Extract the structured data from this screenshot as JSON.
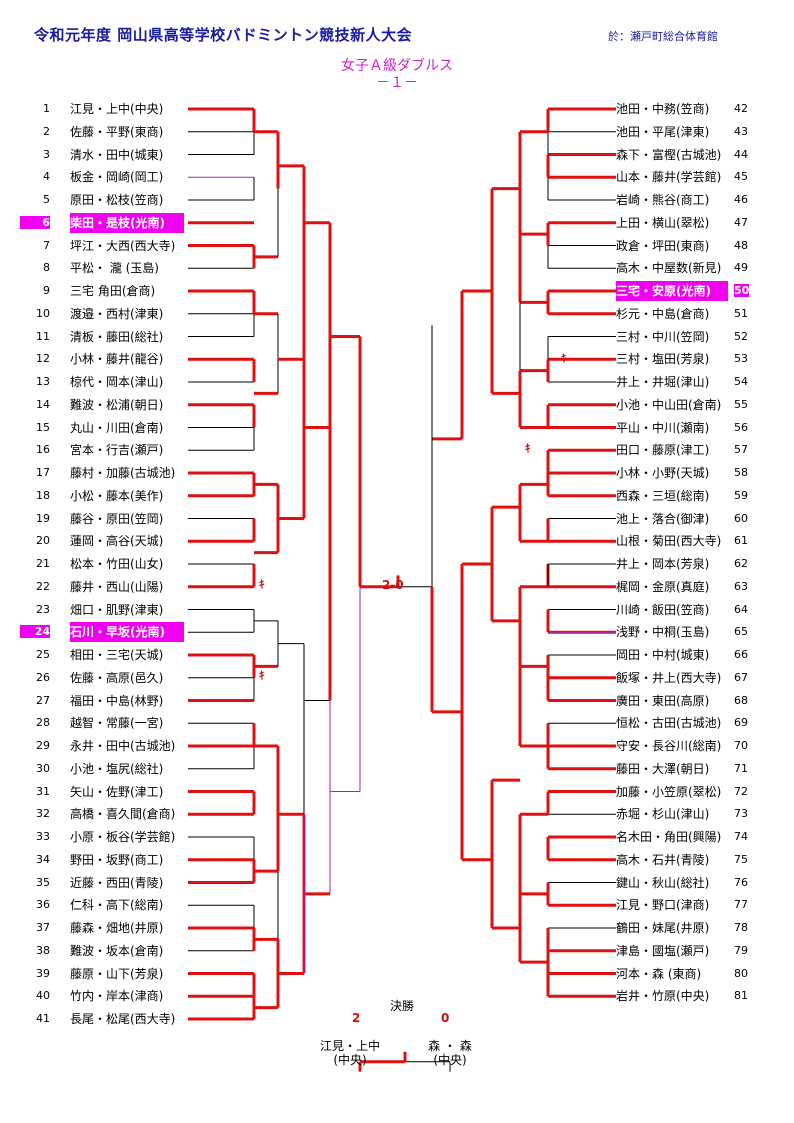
{
  "header": {
    "title": "令和元年度 岡山県高等学校バドミントン競技新人大会",
    "venue": "於：瀬戸町総合体育館",
    "event": "女子Ａ級ダブルス",
    "sheet": "－１－"
  },
  "left_entries": [
    {
      "no": "1",
      "pair": "江見・上中(中央)"
    },
    {
      "no": "2",
      "pair": "佐藤・平野(東商)"
    },
    {
      "no": "3",
      "pair": "清水・田中(城東)"
    },
    {
      "no": "4",
      "pair": "板金・岡崎(岡工)"
    },
    {
      "no": "5",
      "pair": "原田・松枝(笠商)"
    },
    {
      "no": "6",
      "pair": "柴田・是枝(光南)",
      "highlight": true
    },
    {
      "no": "7",
      "pair": "坪江・大西(西大寺)"
    },
    {
      "no": "8",
      "pair": "平松・ 瀧 (玉島)"
    },
    {
      "no": "9",
      "pair": "三宅 角田(倉商)"
    },
    {
      "no": "10",
      "pair": "渡邉・西村(津東)"
    },
    {
      "no": "11",
      "pair": "清板・藤田(総社)"
    },
    {
      "no": "12",
      "pair": "小林・藤井(龍谷)"
    },
    {
      "no": "13",
      "pair": "椋代・岡本(津山)"
    },
    {
      "no": "14",
      "pair": "難波・松浦(朝日)"
    },
    {
      "no": "15",
      "pair": "丸山・川田(倉南)"
    },
    {
      "no": "16",
      "pair": "宮本・行吉(瀬戸)"
    },
    {
      "no": "17",
      "pair": "藤村・加藤(古城池)"
    },
    {
      "no": "18",
      "pair": "小松・藤本(美作)"
    },
    {
      "no": "19",
      "pair": "藤谷・原田(笠岡)"
    },
    {
      "no": "20",
      "pair": "蓮岡・高谷(天城)"
    },
    {
      "no": "21",
      "pair": "松本・竹田(山女)"
    },
    {
      "no": "22",
      "pair": "藤井・西山(山陽)"
    },
    {
      "no": "23",
      "pair": "畑口・肌野(津東)"
    },
    {
      "no": "24",
      "pair": "石川・早坂(光南)",
      "highlight": true
    },
    {
      "no": "25",
      "pair": "相田・三宅(天城)"
    },
    {
      "no": "26",
      "pair": "佐藤・高原(邑久)"
    },
    {
      "no": "27",
      "pair": "福田・中島(林野)"
    },
    {
      "no": "28",
      "pair": "越智・常藤(一宮)"
    },
    {
      "no": "29",
      "pair": "永井・田中(古城池)"
    },
    {
      "no": "30",
      "pair": "小池・塩尻(総社)"
    },
    {
      "no": "31",
      "pair": "矢山・佐野(津工)"
    },
    {
      "no": "32",
      "pair": "高橋・喜久間(倉商)"
    },
    {
      "no": "33",
      "pair": "小原・板谷(学芸館)"
    },
    {
      "no": "34",
      "pair": "野田・坂野(商工)"
    },
    {
      "no": "35",
      "pair": "近藤・西田(青陵)"
    },
    {
      "no": "36",
      "pair": "仁科・高下(総南)"
    },
    {
      "no": "37",
      "pair": "藤森・畑地(井原)"
    },
    {
      "no": "38",
      "pair": "難波・坂本(倉南)"
    },
    {
      "no": "39",
      "pair": "藤原・山下(芳泉)"
    },
    {
      "no": "40",
      "pair": "竹内・岸本(津商)"
    },
    {
      "no": "41",
      "pair": "長尾・松尾(西大寺)"
    }
  ],
  "right_entries": [
    {
      "no": "42",
      "pair": "池田・中務(笠商)"
    },
    {
      "no": "43",
      "pair": "池田・平尾(津東)"
    },
    {
      "no": "44",
      "pair": "森下・富樫(古城池)"
    },
    {
      "no": "45",
      "pair": "山本・藤井(学芸館)"
    },
    {
      "no": "46",
      "pair": "岩崎・熊谷(商工)"
    },
    {
      "no": "47",
      "pair": "上田・横山(翠松)"
    },
    {
      "no": "48",
      "pair": "政倉・坪田(東商)"
    },
    {
      "no": "49",
      "pair": "高木・中屋数(新見)"
    },
    {
      "no": "50",
      "pair": "三宅・安原(光南)",
      "highlight": true
    },
    {
      "no": "51",
      "pair": "杉元・中島(倉商)"
    },
    {
      "no": "52",
      "pair": "三村・中川(笠岡)"
    },
    {
      "no": "53",
      "pair": "三村・塩田(芳泉)"
    },
    {
      "no": "54",
      "pair": "井上・井堀(津山)"
    },
    {
      "no": "55",
      "pair": "小池・中山田(倉南)"
    },
    {
      "no": "56",
      "pair": "平山・中川(瀬南)"
    },
    {
      "no": "57",
      "pair": "田口・藤原(津工)"
    },
    {
      "no": "58",
      "pair": "小林・小野(天城)"
    },
    {
      "no": "59",
      "pair": "西森・三垣(総南)"
    },
    {
      "no": "60",
      "pair": "池上・落合(御津)"
    },
    {
      "no": "61",
      "pair": "山根・菊田(西大寺)"
    },
    {
      "no": "62",
      "pair": "井上・岡本(芳泉)"
    },
    {
      "no": "63",
      "pair": "梶岡・金原(真庭)"
    },
    {
      "no": "64",
      "pair": "川崎・飯田(笠商)"
    },
    {
      "no": "65",
      "pair": "浅野・中桐(玉島)"
    },
    {
      "no": "66",
      "pair": "岡田・中村(城東)"
    },
    {
      "no": "67",
      "pair": "飯塚・井上(西大寺)"
    },
    {
      "no": "68",
      "pair": "廣田・東田(高原)"
    },
    {
      "no": "69",
      "pair": "恒松・古田(古城池)"
    },
    {
      "no": "70",
      "pair": "守安・長谷川(総南)"
    },
    {
      "no": "71",
      "pair": "藤田・大澤(朝日)"
    },
    {
      "no": "72",
      "pair": "加藤・小笠原(翠松)"
    },
    {
      "no": "73",
      "pair": "赤堀・杉山(津山)"
    },
    {
      "no": "74",
      "pair": "名木田・角田(興陽)"
    },
    {
      "no": "75",
      "pair": "高木・石井(青陵)"
    },
    {
      "no": "76",
      "pair": "鍵山・秋山(総社)"
    },
    {
      "no": "77",
      "pair": "江見・野口(津商)"
    },
    {
      "no": "78",
      "pair": "鶴田・妹尾(井原)"
    },
    {
      "no": "79",
      "pair": "津島・國塩(瀬戸)"
    },
    {
      "no": "80",
      "pair": "河本・森 (東商)"
    },
    {
      "no": "81",
      "pair": "岩井・竹原(中央)"
    }
  ],
  "semifinal_score": "2-0",
  "forfeit_mark": "ｷ",
  "final": {
    "label": "決勝",
    "left_score": "2",
    "right_score": "0",
    "left_names": "江見・上中",
    "left_school": "(中央)",
    "right_names": "森 ・ 森",
    "right_school": "(中央)"
  },
  "colors": {
    "winner_line": "#e01010",
    "line": "#000000",
    "highlight": "#f000f0",
    "header": "#1a1aa0"
  }
}
